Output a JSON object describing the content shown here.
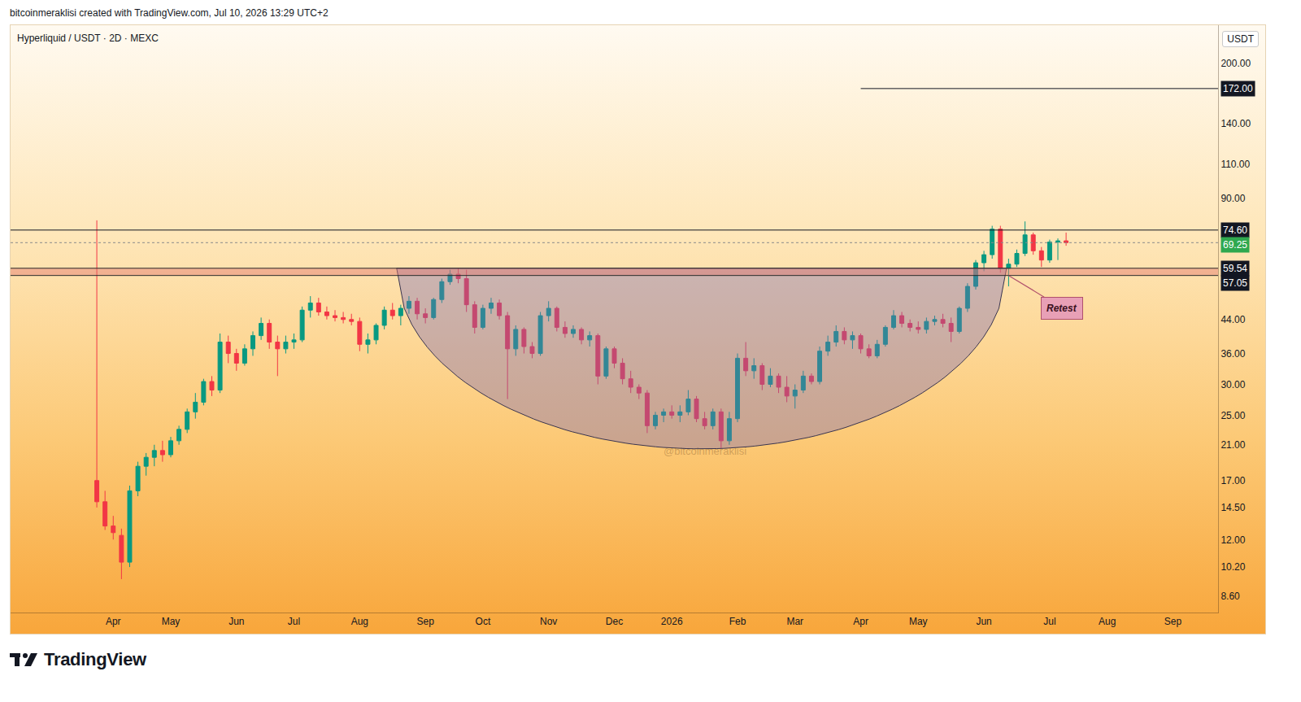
{
  "header": "bitcoinmeraklisi created with TradingView.com, Jul 10, 2026 13:29 UTC+2",
  "credit": "TradingView",
  "chart_data": {
    "type": "candlestick",
    "title": "Hyperliquid / USDT · 2D · MEXC",
    "currency": "USDT",
    "watermark": "@bitcoinmeraklisi",
    "log": "y",
    "grid": false,
    "ylim": [
      7.8,
      250
    ],
    "yticks": [
      {
        "value": 8.6,
        "label": "8.60"
      },
      {
        "value": 10.2,
        "label": "10.20"
      },
      {
        "value": 12,
        "label": "12.00"
      },
      {
        "value": 14.5,
        "label": "14.50"
      },
      {
        "value": 17,
        "label": "17.00"
      },
      {
        "value": 21,
        "label": "21.00"
      },
      {
        "value": 25,
        "label": "25.00"
      },
      {
        "value": 30,
        "label": "30.00"
      },
      {
        "value": 36,
        "label": "36.00"
      },
      {
        "value": 44,
        "label": "44.00"
      },
      {
        "value": 90,
        "label": "90.00"
      },
      {
        "value": 110,
        "label": "110.00"
      },
      {
        "value": 140,
        "label": "140.00"
      },
      {
        "value": 200,
        "label": "200.00"
      }
    ],
    "categories": [
      null,
      null,
      null,
      null,
      null,
      null,
      null,
      null,
      null,
      null,
      null,
      null,
      "Apr",
      null,
      null,
      null,
      null,
      null,
      null,
      "May",
      null,
      null,
      null,
      null,
      null,
      null,
      null,
      "Jun",
      null,
      null,
      null,
      null,
      null,
      null,
      "Jul",
      null,
      null,
      null,
      null,
      null,
      null,
      null,
      "Aug",
      null,
      null,
      null,
      null,
      null,
      null,
      null,
      "Sep",
      null,
      null,
      null,
      null,
      null,
      null,
      "Oct",
      null,
      null,
      null,
      null,
      null,
      null,
      null,
      "Nov",
      null,
      null,
      null,
      null,
      null,
      null,
      null,
      "Dec",
      null,
      null,
      null,
      null,
      null,
      null,
      "2026",
      null,
      null,
      null,
      null,
      null,
      null,
      null,
      "Feb",
      null,
      null,
      null,
      null,
      null,
      null,
      "Mar",
      null,
      null,
      null,
      null,
      null,
      null,
      null,
      "Apr",
      null,
      null,
      null,
      null,
      null,
      null,
      "May",
      null,
      null,
      null,
      null,
      null,
      null,
      null,
      "Jun",
      null,
      null,
      null,
      null,
      null,
      null,
      null,
      "Jul",
      null,
      null,
      null,
      null,
      null,
      null,
      "Aug",
      null,
      null,
      null,
      null,
      null,
      null,
      null,
      "Sep",
      null,
      null,
      null,
      null,
      null
    ],
    "ohlc": [
      null,
      null,
      null,
      null,
      null,
      null,
      null,
      null,
      null,
      null,
      [
        17,
        79,
        14.5,
        15
      ],
      [
        15,
        16,
        12.7,
        13
      ],
      [
        13,
        13.8,
        12,
        12.5
      ],
      [
        12.3,
        12.8,
        9.5,
        10.5
      ],
      [
        10.5,
        16.5,
        10.2,
        16
      ],
      [
        16,
        19,
        15.5,
        18.5
      ],
      [
        18.5,
        20,
        17.5,
        19.5
      ],
      [
        19.5,
        21,
        18.5,
        20.3
      ],
      [
        20.3,
        21.5,
        19,
        19.8
      ],
      [
        19.8,
        22,
        19.5,
        21.5
      ],
      [
        21.5,
        23.5,
        21,
        23
      ],
      [
        23,
        26,
        22.5,
        25.5
      ],
      [
        25.5,
        28.5,
        24.5,
        27
      ],
      [
        27,
        31,
        26.5,
        30.5
      ],
      [
        30.5,
        31.5,
        28,
        29
      ],
      [
        29,
        40.5,
        28.5,
        38.5
      ],
      [
        38.5,
        40,
        34,
        36
      ],
      [
        36,
        37,
        32.5,
        34
      ],
      [
        34,
        38,
        33.5,
        37
      ],
      [
        37,
        41,
        35.5,
        40
      ],
      [
        40,
        44.5,
        39,
        43
      ],
      [
        43,
        44,
        37,
        38.5
      ],
      [
        38.5,
        40,
        31.5,
        37
      ],
      [
        37,
        40,
        36,
        38.5
      ],
      [
        38.5,
        40.5,
        37,
        39
      ],
      [
        39,
        47.5,
        38.5,
        46.5
      ],
      [
        46.5,
        50.5,
        44.5,
        48.5
      ],
      [
        48.5,
        50,
        45,
        46
      ],
      [
        46,
        47.5,
        44,
        45
      ],
      [
        45,
        46.5,
        43.5,
        44.5
      ],
      [
        44.5,
        46,
        43,
        44
      ],
      [
        44,
        45.5,
        42.5,
        43.5
      ],
      [
        43.5,
        44.5,
        36.5,
        38
      ],
      [
        38,
        40.5,
        36,
        39
      ],
      [
        39,
        43,
        38,
        42.5
      ],
      [
        42.5,
        47.5,
        41.5,
        46.5
      ],
      [
        46.5,
        48.5,
        44,
        45
      ],
      [
        45,
        48,
        42.5,
        47
      ],
      [
        47,
        50.5,
        45.5,
        49
      ],
      [
        49,
        50,
        44,
        45.5
      ],
      [
        45.5,
        47,
        43,
        44.5
      ],
      [
        44.5,
        50,
        44,
        49.5
      ],
      [
        49.5,
        56,
        48.5,
        55
      ],
      [
        55,
        59,
        54,
        57.5
      ],
      [
        57.5,
        59.5,
        54.5,
        56
      ],
      [
        56,
        59,
        46,
        48
      ],
      [
        48,
        49,
        40.5,
        42
      ],
      [
        42,
        48,
        41.5,
        47
      ],
      [
        47,
        50,
        45.5,
        48.5
      ],
      [
        48.5,
        49.5,
        44,
        45
      ],
      [
        45,
        46,
        27.5,
        37
      ],
      [
        37,
        42.5,
        35.5,
        41.5
      ],
      [
        41.5,
        42,
        36,
        37.5
      ],
      [
        37.5,
        38.5,
        35,
        36
      ],
      [
        36,
        46,
        35.5,
        45
      ],
      [
        45,
        49,
        43.5,
        47
      ],
      [
        47,
        47.5,
        41,
        42
      ],
      [
        42,
        43.5,
        39.5,
        40.5
      ],
      [
        40.5,
        42.5,
        39.5,
        41.5
      ],
      [
        41.5,
        42,
        38,
        39
      ],
      [
        39,
        41,
        37.5,
        40
      ],
      [
        40,
        40.5,
        30,
        31.5
      ],
      [
        31.5,
        37.5,
        31,
        37
      ],
      [
        37,
        37.5,
        33,
        34
      ],
      [
        34,
        35,
        30,
        31
      ],
      [
        31,
        32.5,
        28.5,
        29.5
      ],
      [
        29.5,
        30,
        27.5,
        28.5
      ],
      [
        28.5,
        29,
        22.5,
        23.5
      ],
      [
        23.5,
        25.5,
        23,
        25
      ],
      [
        25,
        26,
        24,
        25.5
      ],
      [
        25.5,
        26.5,
        24.5,
        25
      ],
      [
        25,
        26.5,
        24,
        25.5
      ],
      [
        25.5,
        29,
        25,
        27.5
      ],
      [
        27.5,
        28,
        24,
        24.5
      ],
      [
        24.5,
        25.5,
        23,
        23.5
      ],
      [
        23.5,
        26,
        23,
        25.5
      ],
      [
        25.5,
        26,
        20.6,
        21.5
      ],
      [
        21.5,
        25.5,
        21,
        24.5
      ],
      [
        24.5,
        36,
        24,
        35
      ],
      [
        35,
        38.5,
        31.5,
        32.5
      ],
      [
        32.5,
        35,
        31,
        33.5
      ],
      [
        33.5,
        34,
        29,
        30
      ],
      [
        30,
        33,
        29.5,
        31.5
      ],
      [
        31.5,
        32,
        28.5,
        29.5
      ],
      [
        29.5,
        31.5,
        27,
        28
      ],
      [
        28,
        30,
        26,
        29
      ],
      [
        29,
        32.5,
        28.5,
        31.5
      ],
      [
        31.5,
        32,
        30,
        30.5
      ],
      [
        30.5,
        37.5,
        30,
        36.5
      ],
      [
        36.5,
        40,
        35.5,
        38.5
      ],
      [
        38.5,
        42.5,
        37.5,
        41
      ],
      [
        41,
        42,
        38,
        39
      ],
      [
        39,
        41,
        37,
        40
      ],
      [
        40,
        40.5,
        36,
        37
      ],
      [
        37,
        38,
        35,
        35.5
      ],
      [
        35.5,
        39,
        35,
        38
      ],
      [
        38,
        42.5,
        37.5,
        42
      ],
      [
        42,
        46.5,
        41.5,
        45
      ],
      [
        45,
        46,
        42,
        43
      ],
      [
        43,
        44,
        41,
        42
      ],
      [
        42,
        43.5,
        40.5,
        41.5
      ],
      [
        41.5,
        44.5,
        40.5,
        43.5
      ],
      [
        43.5,
        45,
        42.5,
        44
      ],
      [
        44,
        45.5,
        42,
        43
      ],
      [
        43,
        44.5,
        38.5,
        41
      ],
      [
        41,
        47.5,
        40.5,
        47
      ],
      [
        47,
        54.5,
        46,
        53.5
      ],
      [
        53.5,
        62.5,
        52.5,
        61.5
      ],
      [
        61.5,
        66,
        58.5,
        64.5
      ],
      [
        64.5,
        76.5,
        63,
        75
      ],
      [
        75,
        76.5,
        58,
        59.5
      ],
      [
        59.5,
        63,
        53.5,
        61
      ],
      [
        61,
        66.5,
        60,
        65
      ],
      [
        65,
        78.5,
        64,
        72.5
      ],
      [
        72.5,
        73.5,
        64.5,
        66
      ],
      [
        66,
        67.5,
        60,
        62.5
      ],
      [
        62.5,
        70.5,
        61.5,
        69.5
      ],
      [
        69.5,
        71,
        62.5,
        70
      ],
      [
        70,
        73.5,
        68,
        69.25
      ],
      null,
      null,
      null,
      null,
      null,
      null,
      null,
      null,
      null,
      null,
      null,
      null,
      null,
      null,
      null,
      null,
      null,
      null
    ],
    "levels": [
      {
        "value": 172,
        "label": "172.00",
        "from": 103
      },
      {
        "value": 74.6,
        "label": "74.60"
      }
    ],
    "zone": {
      "low": 57.05,
      "high": 59.54,
      "labels": [
        "57.05",
        "59.54"
      ]
    },
    "last_price": {
      "value": 69.25,
      "label": "69.25"
    },
    "cup": {
      "start": 46.5,
      "end": 120.75,
      "bottom": 20.5,
      "top": 59.54
    },
    "annotations": [
      {
        "text": "Retest",
        "x": 121,
        "y": 57.05
      }
    ]
  }
}
